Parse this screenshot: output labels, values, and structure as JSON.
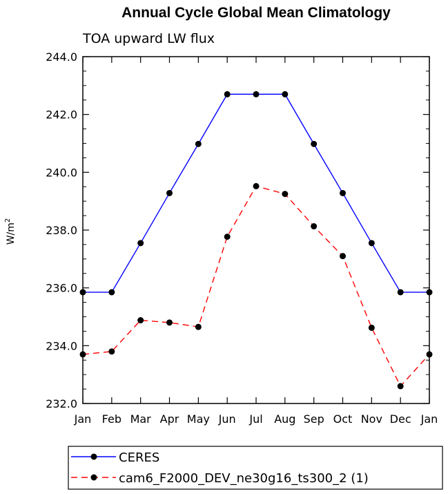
{
  "chart_data": {
    "type": "line",
    "title": "Annual Cycle Global Mean Climatology",
    "subtitle": "TOA upward LW flux",
    "ylabel_base": "W/m",
    "ylabel_exp": "2",
    "categories": [
      "Jan",
      "Feb",
      "Mar",
      "Apr",
      "May",
      "Jun",
      "Jul",
      "Aug",
      "Sep",
      "Oct",
      "Nov",
      "Dec",
      "Jan"
    ],
    "ylim": [
      232.0,
      244.0
    ],
    "yticks": [
      "232.0",
      "234.0",
      "236.0",
      "238.0",
      "240.0",
      "242.0",
      "244.0"
    ],
    "ytick_values": [
      232,
      234,
      236,
      238,
      240,
      242,
      244
    ],
    "grid": false,
    "legend_position": "bottom-left",
    "series": [
      {
        "name": "CERES",
        "color": "#0000ff",
        "dash": "solid",
        "values": [
          235.85,
          235.85,
          237.55,
          239.28,
          240.98,
          242.7,
          242.7,
          242.7,
          240.98,
          239.28,
          237.55,
          235.85,
          235.85
        ]
      },
      {
        "name": "cam6_F2000_DEV_ne30g16_ts300_2 (1)",
        "color": "#ff0000",
        "dash": "dashed",
        "values": [
          233.7,
          233.8,
          234.88,
          234.8,
          234.65,
          237.77,
          239.52,
          239.25,
          238.13,
          237.1,
          234.62,
          232.6,
          233.7
        ]
      }
    ]
  }
}
